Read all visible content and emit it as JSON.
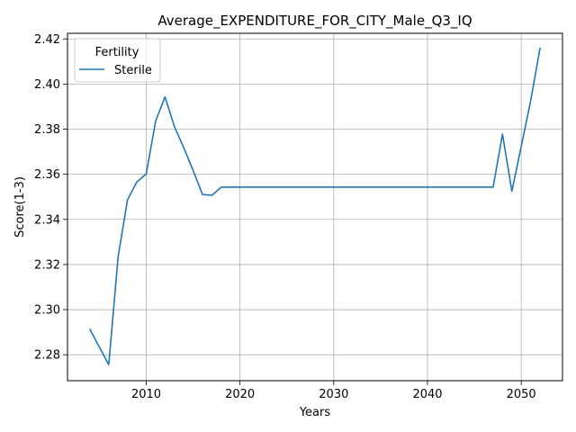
{
  "chart_data": {
    "type": "line",
    "title": "Average_EXPENDITURE_FOR_CITY_Male_Q3_IQ",
    "xlabel": "Years",
    "ylabel": "Score(1-3)",
    "xlim": [
      2001.6,
      2054.4
    ],
    "ylim": [
      2.2685,
      2.4225
    ],
    "xticks": [
      2010,
      2020,
      2030,
      2040,
      2050
    ],
    "yticks": [
      2.28,
      2.3,
      2.32,
      2.34,
      2.36,
      2.38,
      2.4,
      2.42
    ],
    "grid": true,
    "legend": {
      "title": "Fertility",
      "placement": "top-left"
    },
    "series": [
      {
        "name": "Sterile",
        "color": "#1f77b4",
        "x": [
          2004,
          2006,
          2007,
          2008,
          2009,
          2010,
          2011,
          2012,
          2013,
          2014,
          2015,
          2016,
          2017,
          2018,
          2019,
          2020,
          2025,
          2030,
          2035,
          2040,
          2045,
          2047,
          2048,
          2049,
          2050,
          2051,
          2052
        ],
        "y": [
          2.2912,
          2.2756,
          2.3235,
          2.3487,
          2.3566,
          2.3602,
          2.3836,
          2.3943,
          2.3812,
          2.3718,
          2.3617,
          2.351,
          2.3507,
          2.3543,
          2.3543,
          2.3543,
          2.3543,
          2.3543,
          2.3543,
          2.3543,
          2.3543,
          2.3543,
          2.3778,
          2.3525,
          2.3724,
          2.3925,
          2.4158
        ]
      }
    ]
  }
}
